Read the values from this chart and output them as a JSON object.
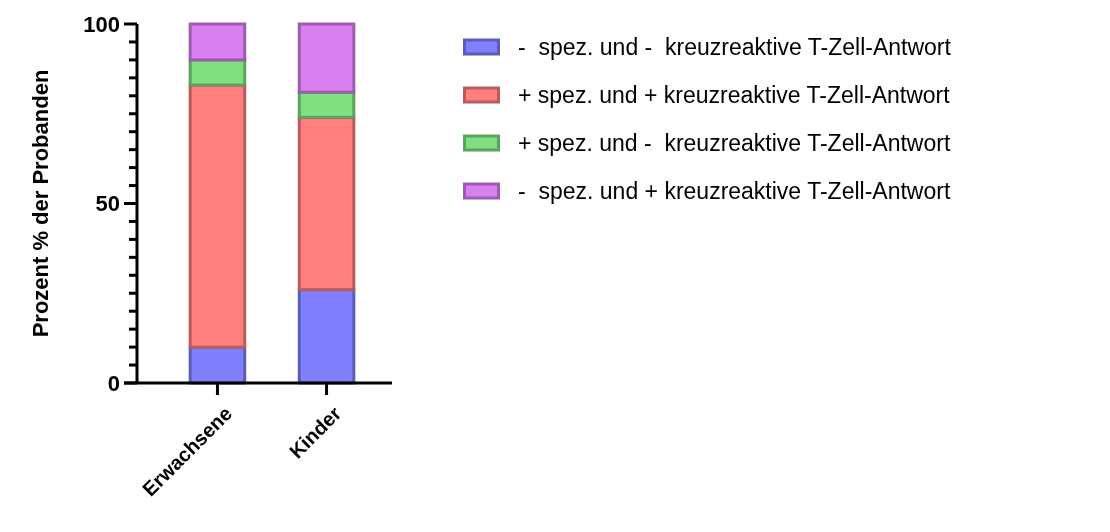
{
  "chart_data": {
    "type": "bar",
    "stacked": true,
    "ylabel": "Prozent % der Probanden",
    "categories": [
      "Erwachsene",
      "Kinder"
    ],
    "series": [
      {
        "name": "-  spez. und -  kreuzreaktive T-Zell-Antwort",
        "color": "#8080ff",
        "values": [
          10,
          26
        ]
      },
      {
        "name": "+ spez. und + kreuzreaktive T-Zell-Antwort",
        "color": "#ff7f7f",
        "values": [
          73,
          48
        ]
      },
      {
        "name": "+ spez. und -  kreuzreaktive T-Zell-Antwort",
        "color": "#80e080",
        "values": [
          7,
          7
        ]
      },
      {
        "name": "-  spez. und + kreuzreaktive T-Zell-Antwort",
        "color": "#d880f0",
        "values": [
          10,
          19
        ]
      }
    ],
    "ylim": [
      0,
      100
    ],
    "yticks": [
      0,
      {
        "value": 5,
        "label": null
      },
      {
        "value": 10,
        "label": null
      },
      {
        "value": 15,
        "label": null
      },
      {
        "value": 20,
        "label": null
      },
      {
        "value": 25,
        "label": null
      },
      {
        "value": 30,
        "label": null
      },
      {
        "value": 35,
        "label": null
      },
      {
        "value": 40,
        "label": null
      },
      {
        "value": 45,
        "label": null
      },
      50,
      {
        "value": 55,
        "label": null
      },
      {
        "value": 60,
        "label": null
      },
      {
        "value": 65,
        "label": null
      },
      {
        "value": 70,
        "label": null
      },
      {
        "value": 75,
        "label": null
      },
      {
        "value": 80,
        "label": null
      },
      {
        "value": 85,
        "label": null
      },
      {
        "value": 90,
        "label": null
      },
      {
        "value": 95,
        "label": null
      },
      100
    ],
    "legend": "right"
  }
}
